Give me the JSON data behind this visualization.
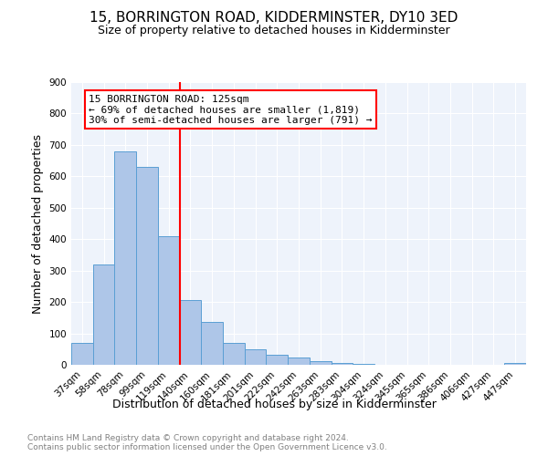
{
  "title": "15, BORRINGTON ROAD, KIDDERMINSTER, DY10 3ED",
  "subtitle": "Size of property relative to detached houses in Kidderminster",
  "xlabel": "Distribution of detached houses by size in Kidderminster",
  "ylabel": "Number of detached properties",
  "categories": [
    "37sqm",
    "58sqm",
    "78sqm",
    "99sqm",
    "119sqm",
    "140sqm",
    "160sqm",
    "181sqm",
    "201sqm",
    "222sqm",
    "242sqm",
    "263sqm",
    "283sqm",
    "304sqm",
    "324sqm",
    "345sqm",
    "365sqm",
    "386sqm",
    "406sqm",
    "427sqm",
    "447sqm"
  ],
  "values": [
    70,
    320,
    680,
    630,
    410,
    207,
    137,
    70,
    48,
    33,
    22,
    12,
    7,
    2,
    1,
    1,
    0,
    1,
    0,
    0,
    7
  ],
  "bar_color": "#aec6e8",
  "bar_edge_color": "#5a9fd4",
  "vline_x": 4.5,
  "vline_color": "red",
  "annotation_text": "15 BORRINGTON ROAD: 125sqm\n← 69% of detached houses are smaller (1,819)\n30% of semi-detached houses are larger (791) →",
  "annotation_box_color": "white",
  "annotation_box_edge_color": "red",
  "ylim": [
    0,
    900
  ],
  "yticks": [
    0,
    100,
    200,
    300,
    400,
    500,
    600,
    700,
    800,
    900
  ],
  "background_color": "#eef3fb",
  "footer_text": "Contains HM Land Registry data © Crown copyright and database right 2024.\nContains public sector information licensed under the Open Government Licence v3.0.",
  "title_fontsize": 11,
  "subtitle_fontsize": 9,
  "xlabel_fontsize": 9,
  "ylabel_fontsize": 9,
  "tick_fontsize": 7.5,
  "footer_fontsize": 6.5,
  "annotation_fontsize": 8
}
